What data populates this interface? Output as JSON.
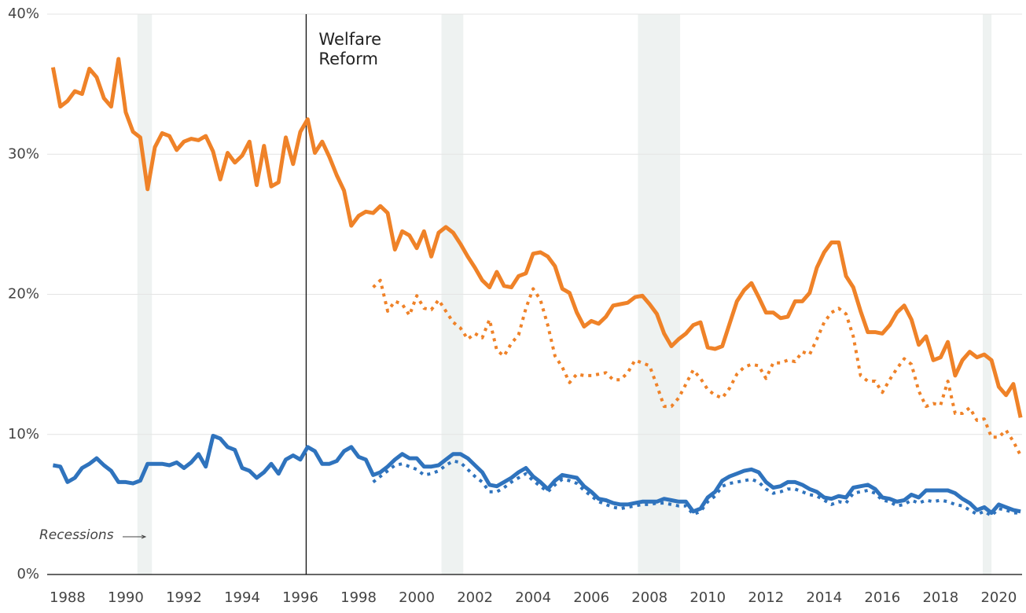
{
  "chart_data": {
    "type": "line",
    "x": [
      1987.5,
      1987.75,
      1988,
      1988.25,
      1988.5,
      1988.75,
      1989,
      1989.25,
      1989.5,
      1989.75,
      1990,
      1990.25,
      1990.5,
      1990.75,
      1991,
      1991.25,
      1991.5,
      1991.75,
      1992,
      1992.25,
      1992.5,
      1992.75,
      1993,
      1993.25,
      1993.5,
      1993.75,
      1994,
      1994.25,
      1994.5,
      1994.75,
      1995,
      1995.25,
      1995.5,
      1995.75,
      1996,
      1996.25,
      1996.5,
      1996.75,
      1997,
      1997.25,
      1997.5,
      1997.75,
      1998,
      1998.25,
      1998.5,
      1998.75,
      1999,
      1999.25,
      1999.5,
      1999.75,
      2000,
      2000.25,
      2000.5,
      2000.75,
      2001,
      2001.25,
      2001.5,
      2001.75,
      2002,
      2002.25,
      2002.5,
      2002.75,
      2003,
      2003.25,
      2003.5,
      2003.75,
      2004,
      2004.25,
      2004.5,
      2004.75,
      2005,
      2005.25,
      2005.5,
      2005.75,
      2006,
      2006.25,
      2006.5,
      2006.75,
      2007,
      2007.25,
      2007.5,
      2007.75,
      2008,
      2008.25,
      2008.5,
      2008.75,
      2009,
      2009.25,
      2009.5,
      2009.75,
      2010,
      2010.25,
      2010.5,
      2010.75,
      2011,
      2011.25,
      2011.5,
      2011.75,
      2012,
      2012.25,
      2012.5,
      2012.75,
      2013,
      2013.25,
      2013.5,
      2013.75,
      2014,
      2014.25,
      2014.5,
      2014.75,
      2015,
      2015.25,
      2015.5,
      2015.75,
      2016,
      2016.25,
      2016.5,
      2016.75,
      2017,
      2017.25,
      2017.5,
      2017.75,
      2018,
      2018.25,
      2018.5,
      2018.75,
      2019,
      2019.25,
      2019.5,
      2019.75,
      2020,
      2020.25,
      2020.5,
      2020.75
    ],
    "series": [
      {
        "color": "#ef8228",
        "style": "solid",
        "values": [
          36.2,
          33.4,
          33.8,
          34.5,
          34.3,
          36.1,
          35.5,
          34.0,
          33.4,
          36.8,
          33.0,
          31.6,
          31.2,
          27.5,
          30.5,
          31.5,
          31.3,
          30.3,
          30.9,
          31.1,
          31.0,
          31.3,
          30.2,
          28.2,
          30.1,
          29.4,
          29.9,
          30.9,
          27.8,
          30.6,
          27.7,
          28.0,
          31.2,
          29.3,
          31.6,
          32.5,
          30.1,
          30.9,
          29.8,
          28.5,
          27.4,
          24.9,
          25.6,
          25.9,
          25.8,
          26.3,
          25.8,
          23.2,
          24.5,
          24.2,
          23.3,
          24.5,
          22.7,
          24.4,
          24.8,
          24.4,
          23.6,
          22.7,
          21.9,
          21.0,
          20.5,
          21.6,
          20.6,
          20.5,
          21.3,
          21.5,
          22.9,
          23.0,
          22.7,
          22.0,
          20.4,
          20.1,
          18.7,
          17.7,
          18.1,
          17.9,
          18.4,
          19.2,
          19.3,
          19.4,
          19.8,
          19.9,
          19.3,
          18.6,
          17.2,
          16.3,
          16.8,
          17.2,
          17.8,
          18.0,
          16.2,
          16.1,
          16.3,
          17.9,
          19.5,
          20.3,
          20.8,
          19.8,
          18.7,
          18.7,
          18.3,
          18.4,
          19.5,
          19.5,
          20.1,
          21.9,
          23.0,
          23.7,
          23.7,
          21.3,
          20.5,
          18.8,
          17.3,
          17.3,
          17.2,
          17.8,
          18.7,
          19.2,
          18.2,
          16.4,
          17.0,
          15.3,
          15.5,
          16.6,
          14.2,
          15.3,
          15.9,
          15.5,
          15.7,
          15.3,
          13.4,
          12.8,
          13.6,
          11.2
        ]
      },
      {
        "color": "#ef8228",
        "style": "dotted",
        "values": [
          null,
          null,
          null,
          null,
          null,
          null,
          null,
          null,
          null,
          null,
          null,
          null,
          null,
          null,
          null,
          null,
          null,
          null,
          null,
          null,
          null,
          null,
          null,
          null,
          null,
          null,
          null,
          null,
          null,
          null,
          null,
          null,
          null,
          null,
          null,
          null,
          null,
          null,
          null,
          null,
          null,
          null,
          null,
          null,
          20.5,
          21.0,
          18.8,
          19.5,
          19.3,
          18.5,
          19.9,
          19.0,
          18.9,
          19.6,
          18.8,
          18.0,
          17.6,
          16.8,
          17.2,
          16.9,
          18.2,
          16.0,
          15.6,
          16.5,
          17.1,
          19.0,
          20.4,
          19.6,
          17.8,
          15.6,
          14.8,
          13.7,
          14.3,
          14.2,
          14.2,
          14.3,
          14.4,
          13.9,
          13.9,
          14.4,
          15.3,
          15.1,
          14.9,
          13.5,
          12.0,
          12.0,
          12.6,
          13.6,
          14.6,
          14.0,
          13.2,
          12.8,
          12.6,
          13.3,
          14.3,
          14.8,
          15.0,
          14.9,
          14.0,
          15.1,
          15.1,
          15.3,
          15.2,
          15.9,
          15.7,
          16.8,
          18.0,
          18.7,
          19.0,
          18.6,
          17.0,
          14.2,
          13.8,
          13.8,
          13.0,
          13.9,
          14.7,
          15.4,
          15.0,
          13.1,
          12.0,
          12.2,
          12.1,
          13.8,
          11.5,
          11.5,
          11.9,
          11.0,
          11.1,
          9.8,
          9.8,
          10.3,
          9.5,
          8.5
        ]
      },
      {
        "color": "#2f73bd",
        "style": "solid",
        "values": [
          7.8,
          7.7,
          6.6,
          6.9,
          7.6,
          7.9,
          8.3,
          7.8,
          7.4,
          6.6,
          6.6,
          6.5,
          6.7,
          7.9,
          7.9,
          7.9,
          7.8,
          8.0,
          7.6,
          8.0,
          8.6,
          7.7,
          9.9,
          9.7,
          9.1,
          8.9,
          7.6,
          7.4,
          6.9,
          7.3,
          7.9,
          7.2,
          8.2,
          8.5,
          8.2,
          9.1,
          8.8,
          7.9,
          7.9,
          8.1,
          8.8,
          9.1,
          8.4,
          8.2,
          7.1,
          7.3,
          7.7,
          8.2,
          8.6,
          8.3,
          8.3,
          7.7,
          7.7,
          7.8,
          8.2,
          8.6,
          8.6,
          8.3,
          7.8,
          7.3,
          6.4,
          6.3,
          6.6,
          6.9,
          7.3,
          7.6,
          7.0,
          6.6,
          6.1,
          6.7,
          7.1,
          7.0,
          6.9,
          6.3,
          5.9,
          5.4,
          5.3,
          5.1,
          5.0,
          5.0,
          5.1,
          5.2,
          5.2,
          5.2,
          5.4,
          5.3,
          5.2,
          5.2,
          4.5,
          4.7,
          5.5,
          5.9,
          6.7,
          7.0,
          7.2,
          7.4,
          7.5,
          7.3,
          6.6,
          6.2,
          6.3,
          6.6,
          6.6,
          6.4,
          6.1,
          5.9,
          5.5,
          5.4,
          5.6,
          5.5,
          6.2,
          6.3,
          6.4,
          6.1,
          5.5,
          5.4,
          5.2,
          5.3,
          5.7,
          5.5,
          6.0,
          6.0,
          6.0,
          6.0,
          5.8,
          5.4,
          5.1,
          4.6,
          4.8,
          4.4,
          5.0,
          4.8,
          4.6,
          4.5
        ]
      },
      {
        "color": "#2f73bd",
        "style": "dotted",
        "values": [
          null,
          null,
          null,
          null,
          null,
          null,
          null,
          null,
          null,
          null,
          null,
          null,
          null,
          null,
          null,
          null,
          null,
          null,
          null,
          null,
          null,
          null,
          null,
          null,
          null,
          null,
          null,
          null,
          null,
          null,
          null,
          null,
          null,
          null,
          null,
          null,
          null,
          null,
          null,
          null,
          null,
          null,
          null,
          null,
          6.6,
          7.0,
          7.4,
          7.8,
          7.9,
          7.7,
          7.5,
          7.1,
          7.2,
          7.4,
          7.8,
          8.1,
          8.0,
          7.5,
          7.0,
          6.6,
          5.9,
          5.9,
          6.2,
          6.6,
          6.9,
          7.2,
          6.7,
          6.3,
          5.9,
          6.4,
          6.8,
          6.7,
          6.5,
          6.0,
          5.6,
          5.2,
          5.0,
          4.8,
          4.7,
          4.8,
          4.9,
          5.0,
          5.0,
          5.1,
          5.1,
          5.0,
          4.9,
          4.9,
          4.3,
          4.5,
          5.2,
          5.6,
          6.3,
          6.5,
          6.6,
          6.7,
          6.8,
          6.6,
          6.1,
          5.8,
          5.9,
          6.1,
          6.1,
          5.9,
          5.7,
          5.6,
          5.3,
          5.0,
          5.2,
          5.1,
          5.8,
          5.9,
          6.0,
          5.8,
          5.3,
          5.2,
          4.9,
          5.0,
          5.3,
          5.1,
          5.3,
          5.2,
          5.3,
          5.2,
          5.0,
          4.9,
          4.6,
          4.3,
          4.5,
          4.2,
          4.7,
          4.6,
          4.4,
          4.4
        ]
      }
    ],
    "xlim": [
      1987.3,
      2020.8
    ],
    "xticks": [
      1988,
      1990,
      1992,
      1994,
      1996,
      1998,
      2000,
      2002,
      2004,
      2006,
      2008,
      2010,
      2012,
      2014,
      2016,
      2018,
      2020
    ],
    "ylim": [
      0,
      40
    ],
    "yticks": [
      {
        "value": 0,
        "label": "0%"
      },
      {
        "value": 10,
        "label": "10%"
      },
      {
        "value": 20,
        "label": "20%"
      },
      {
        "value": 30,
        "label": "30%"
      },
      {
        "value": 40,
        "label": "40%"
      }
    ],
    "grid": true,
    "recessions": [
      [
        1990.4,
        1990.9
      ],
      [
        2000.85,
        2001.6
      ],
      [
        2007.6,
        2009.05
      ],
      [
        2019.45,
        2019.75
      ]
    ],
    "recessions_label": "Recessions",
    "annotations": [
      {
        "x": 1996.2,
        "text": "Welfare Reform"
      }
    ]
  }
}
